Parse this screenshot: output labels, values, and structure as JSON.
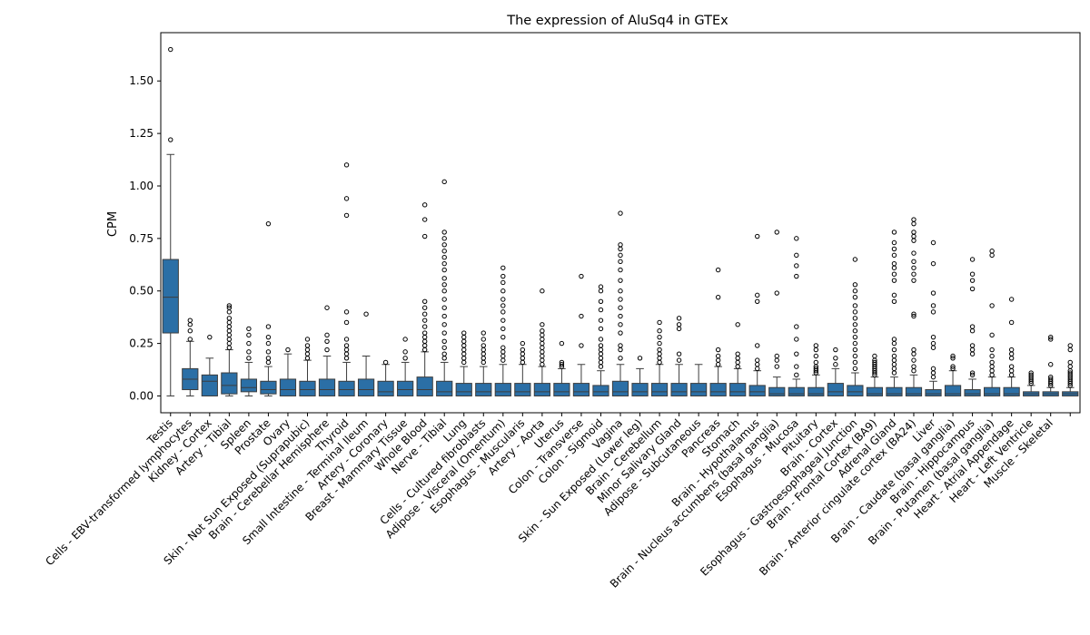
{
  "chart_data": {
    "type": "box",
    "title": "The expression of AluSq4 in GTEx",
    "xlabel": "",
    "ylabel": "CPM",
    "ylim": [
      -0.08,
      1.73
    ],
    "yticks": [
      0.0,
      0.25,
      0.5,
      0.75,
      1.0,
      1.25,
      1.5
    ],
    "ytick_labels": [
      "0.00",
      "0.25",
      "0.50",
      "0.75",
      "1.00",
      "1.25",
      "1.50"
    ],
    "box_color": "#2b6fa6",
    "grid": false,
    "categories": [
      {
        "label": "Testis",
        "q1": 0.3,
        "median": 0.47,
        "q3": 0.65,
        "whisker_low": 0.0,
        "whisker_high": 1.15,
        "outliers": [
          1.22,
          1.65
        ]
      },
      {
        "label": "Cells - EBV-transformed lymphocytes",
        "q1": 0.03,
        "median": 0.08,
        "q3": 0.13,
        "whisker_low": 0.0,
        "whisker_high": 0.26,
        "outliers": [
          0.27,
          0.31,
          0.34,
          0.36
        ]
      },
      {
        "label": "Kidney - Cortex",
        "q1": 0.0,
        "median": 0.07,
        "q3": 0.1,
        "whisker_low": 0.0,
        "whisker_high": 0.18,
        "outliers": [
          0.28
        ]
      },
      {
        "label": "Artery - Tibial",
        "q1": 0.01,
        "median": 0.05,
        "q3": 0.11,
        "whisker_low": 0.0,
        "whisker_high": 0.22,
        "outliers": [
          0.23,
          0.25,
          0.27,
          0.29,
          0.31,
          0.33,
          0.35,
          0.37,
          0.4,
          0.42,
          0.43
        ]
      },
      {
        "label": "Spleen",
        "q1": 0.02,
        "median": 0.04,
        "q3": 0.08,
        "whisker_low": 0.0,
        "whisker_high": 0.16,
        "outliers": [
          0.18,
          0.21,
          0.25,
          0.29,
          0.32
        ]
      },
      {
        "label": "Prostate",
        "q1": 0.01,
        "median": 0.03,
        "q3": 0.07,
        "whisker_low": 0.0,
        "whisker_high": 0.14,
        "outliers": [
          0.16,
          0.18,
          0.21,
          0.25,
          0.28,
          0.33,
          0.82
        ]
      },
      {
        "label": "Ovary",
        "q1": 0.0,
        "median": 0.03,
        "q3": 0.08,
        "whisker_low": 0.0,
        "whisker_high": 0.2,
        "outliers": [
          0.22
        ]
      },
      {
        "label": "Skin - Not Sun Exposed (Suprapubic)",
        "q1": 0.0,
        "median": 0.03,
        "q3": 0.07,
        "whisker_low": 0.0,
        "whisker_high": 0.17,
        "outliers": [
          0.18,
          0.2,
          0.22,
          0.24,
          0.27
        ]
      },
      {
        "label": "Brain - Cerebellar Hemisphere",
        "q1": 0.0,
        "median": 0.03,
        "q3": 0.08,
        "whisker_low": 0.0,
        "whisker_high": 0.19,
        "outliers": [
          0.22,
          0.26,
          0.29,
          0.42
        ]
      },
      {
        "label": "Thyroid",
        "q1": 0.0,
        "median": 0.03,
        "q3": 0.07,
        "whisker_low": 0.0,
        "whisker_high": 0.16,
        "outliers": [
          0.18,
          0.2,
          0.22,
          0.24,
          0.27,
          0.35,
          0.4,
          0.86,
          0.94,
          1.1
        ]
      },
      {
        "label": "Small Intestine - Terminal Ileum",
        "q1": 0.0,
        "median": 0.03,
        "q3": 0.08,
        "whisker_low": 0.0,
        "whisker_high": 0.19,
        "outliers": [
          0.39
        ]
      },
      {
        "label": "Artery - Coronary",
        "q1": 0.0,
        "median": 0.02,
        "q3": 0.07,
        "whisker_low": 0.0,
        "whisker_high": 0.15,
        "outliers": [
          0.16
        ]
      },
      {
        "label": "Breast - Mammary Tissue",
        "q1": 0.0,
        "median": 0.03,
        "q3": 0.07,
        "whisker_low": 0.0,
        "whisker_high": 0.16,
        "outliers": [
          0.18,
          0.21,
          0.27
        ]
      },
      {
        "label": "Whole Blood",
        "q1": 0.0,
        "median": 0.03,
        "q3": 0.09,
        "whisker_low": 0.0,
        "whisker_high": 0.21,
        "outliers": [
          0.22,
          0.24,
          0.26,
          0.28,
          0.3,
          0.33,
          0.36,
          0.39,
          0.42,
          0.45,
          0.76,
          0.84,
          0.91
        ]
      },
      {
        "label": "Nerve - Tibial",
        "q1": 0.0,
        "median": 0.02,
        "q3": 0.07,
        "whisker_low": 0.0,
        "whisker_high": 0.16,
        "outliers": [
          0.18,
          0.2,
          0.23,
          0.26,
          0.3,
          0.34,
          0.38,
          0.42,
          0.46,
          0.5,
          0.53,
          0.56,
          0.6,
          0.63,
          0.66,
          0.69,
          0.72,
          0.75,
          0.78,
          1.02
        ]
      },
      {
        "label": "Lung",
        "q1": 0.0,
        "median": 0.02,
        "q3": 0.06,
        "whisker_low": 0.0,
        "whisker_high": 0.14,
        "outliers": [
          0.16,
          0.18,
          0.2,
          0.22,
          0.24,
          0.26,
          0.28,
          0.3
        ]
      },
      {
        "label": "Cells - Cultured fibroblasts",
        "q1": 0.0,
        "median": 0.02,
        "q3": 0.06,
        "whisker_low": 0.0,
        "whisker_high": 0.14,
        "outliers": [
          0.16,
          0.18,
          0.2,
          0.22,
          0.24,
          0.27,
          0.3
        ]
      },
      {
        "label": "Adipose - Visceral (Omentum)",
        "q1": 0.0,
        "median": 0.02,
        "q3": 0.06,
        "whisker_low": 0.0,
        "whisker_high": 0.15,
        "outliers": [
          0.17,
          0.19,
          0.21,
          0.23,
          0.28,
          0.32,
          0.36,
          0.4,
          0.43,
          0.46,
          0.5,
          0.54,
          0.57,
          0.61
        ]
      },
      {
        "label": "Esophagus - Muscularis",
        "q1": 0.0,
        "median": 0.02,
        "q3": 0.06,
        "whisker_low": 0.0,
        "whisker_high": 0.15,
        "outliers": [
          0.16,
          0.18,
          0.2,
          0.22,
          0.25
        ]
      },
      {
        "label": "Artery - Aorta",
        "q1": 0.0,
        "median": 0.02,
        "q3": 0.06,
        "whisker_low": 0.0,
        "whisker_high": 0.14,
        "outliers": [
          0.15,
          0.17,
          0.19,
          0.21,
          0.23,
          0.25,
          0.27,
          0.29,
          0.31,
          0.34,
          0.5
        ]
      },
      {
        "label": "Uterus",
        "q1": 0.0,
        "median": 0.02,
        "q3": 0.06,
        "whisker_low": 0.0,
        "whisker_high": 0.13,
        "outliers": [
          0.14,
          0.15,
          0.16,
          0.25
        ]
      },
      {
        "label": "Colon - Transverse",
        "q1": 0.0,
        "median": 0.02,
        "q3": 0.06,
        "whisker_low": 0.0,
        "whisker_high": 0.15,
        "outliers": [
          0.24,
          0.38,
          0.57
        ]
      },
      {
        "label": "Colon - Sigmoid",
        "q1": 0.0,
        "median": 0.02,
        "q3": 0.05,
        "whisker_low": 0.0,
        "whisker_high": 0.12,
        "outliers": [
          0.14,
          0.16,
          0.18,
          0.2,
          0.22,
          0.24,
          0.27,
          0.32,
          0.36,
          0.41,
          0.45,
          0.5,
          0.52
        ]
      },
      {
        "label": "Vagina",
        "q1": 0.0,
        "median": 0.02,
        "q3": 0.07,
        "whisker_low": 0.0,
        "whisker_high": 0.15,
        "outliers": [
          0.18,
          0.22,
          0.24,
          0.3,
          0.34,
          0.38,
          0.42,
          0.46,
          0.5,
          0.55,
          0.6,
          0.64,
          0.67,
          0.7,
          0.72,
          0.87
        ]
      },
      {
        "label": "Skin - Sun Exposed (Lower leg)",
        "q1": 0.0,
        "median": 0.02,
        "q3": 0.06,
        "whisker_low": 0.0,
        "whisker_high": 0.13,
        "outliers": [
          0.18
        ]
      },
      {
        "label": "Brain - Cerebellum",
        "q1": 0.0,
        "median": 0.02,
        "q3": 0.06,
        "whisker_low": 0.0,
        "whisker_high": 0.15,
        "outliers": [
          0.16,
          0.18,
          0.2,
          0.22,
          0.25,
          0.28,
          0.31,
          0.35
        ]
      },
      {
        "label": "Minor Salivary Gland",
        "q1": 0.0,
        "median": 0.02,
        "q3": 0.06,
        "whisker_low": 0.0,
        "whisker_high": 0.15,
        "outliers": [
          0.17,
          0.2,
          0.32,
          0.34,
          0.37
        ]
      },
      {
        "label": "Adipose - Subcutaneous",
        "q1": 0.0,
        "median": 0.02,
        "q3": 0.06,
        "whisker_low": 0.0,
        "whisker_high": 0.15,
        "outliers": []
      },
      {
        "label": "Pancreas",
        "q1": 0.0,
        "median": 0.02,
        "q3": 0.06,
        "whisker_low": 0.0,
        "whisker_high": 0.14,
        "outliers": [
          0.15,
          0.17,
          0.19,
          0.22,
          0.47,
          0.6
        ]
      },
      {
        "label": "Stomach",
        "q1": 0.0,
        "median": 0.02,
        "q3": 0.06,
        "whisker_low": 0.0,
        "whisker_high": 0.13,
        "outliers": [
          0.14,
          0.16,
          0.18,
          0.2,
          0.34
        ]
      },
      {
        "label": "Brain - Hypothalamus",
        "q1": 0.0,
        "median": 0.02,
        "q3": 0.05,
        "whisker_low": 0.0,
        "whisker_high": 0.12,
        "outliers": [
          0.13,
          0.15,
          0.17,
          0.24,
          0.45,
          0.48,
          0.76
        ]
      },
      {
        "label": "Brain - Nucleus accumbens (basal ganglia)",
        "q1": 0.0,
        "median": 0.01,
        "q3": 0.04,
        "whisker_low": 0.0,
        "whisker_high": 0.09,
        "outliers": [
          0.14,
          0.17,
          0.19,
          0.49,
          0.78
        ]
      },
      {
        "label": "Esophagus - Mucosa",
        "q1": 0.0,
        "median": 0.01,
        "q3": 0.04,
        "whisker_low": 0.0,
        "whisker_high": 0.08,
        "outliers": [
          0.1,
          0.14,
          0.2,
          0.27,
          0.33,
          0.57,
          0.62,
          0.67,
          0.75
        ]
      },
      {
        "label": "Pituitary",
        "q1": 0.0,
        "median": 0.01,
        "q3": 0.04,
        "whisker_low": 0.0,
        "whisker_high": 0.1,
        "outliers": [
          0.11,
          0.12,
          0.13,
          0.14,
          0.16,
          0.19,
          0.22,
          0.24
        ]
      },
      {
        "label": "Brain - Cortex",
        "q1": 0.0,
        "median": 0.02,
        "q3": 0.06,
        "whisker_low": 0.0,
        "whisker_high": 0.13,
        "outliers": [
          0.15,
          0.18,
          0.22
        ]
      },
      {
        "label": "Esophagus - Gastroesophageal Junction",
        "q1": 0.0,
        "median": 0.02,
        "q3": 0.05,
        "whisker_low": 0.0,
        "whisker_high": 0.11,
        "outliers": [
          0.13,
          0.16,
          0.19,
          0.22,
          0.25,
          0.28,
          0.31,
          0.34,
          0.37,
          0.4,
          0.43,
          0.47,
          0.5,
          0.53,
          0.65
        ]
      },
      {
        "label": "Brain - Frontal Cortex (BA9)",
        "q1": 0.0,
        "median": 0.01,
        "q3": 0.04,
        "whisker_low": 0.0,
        "whisker_high": 0.09,
        "outliers": [
          0.1,
          0.11,
          0.12,
          0.13,
          0.14,
          0.15,
          0.16,
          0.17,
          0.19
        ]
      },
      {
        "label": "Adrenal Gland",
        "q1": 0.0,
        "median": 0.01,
        "q3": 0.04,
        "whisker_low": 0.0,
        "whisker_high": 0.09,
        "outliers": [
          0.11,
          0.13,
          0.15,
          0.17,
          0.19,
          0.22,
          0.25,
          0.27,
          0.45,
          0.48,
          0.55,
          0.58,
          0.61,
          0.63,
          0.67,
          0.7,
          0.73,
          0.78
        ]
      },
      {
        "label": "Brain - Anterior cingulate cortex (BA24)",
        "q1": 0.0,
        "median": 0.01,
        "q3": 0.04,
        "whisker_low": 0.0,
        "whisker_high": 0.1,
        "outliers": [
          0.12,
          0.14,
          0.17,
          0.2,
          0.22,
          0.38,
          0.39,
          0.55,
          0.58,
          0.61,
          0.64,
          0.68,
          0.74,
          0.76,
          0.78,
          0.82,
          0.84
        ]
      },
      {
        "label": "Liver",
        "q1": 0.0,
        "median": 0.01,
        "q3": 0.03,
        "whisker_low": 0.0,
        "whisker_high": 0.07,
        "outliers": [
          0.09,
          0.11,
          0.13,
          0.23,
          0.25,
          0.28,
          0.4,
          0.43,
          0.49,
          0.63,
          0.73
        ]
      },
      {
        "label": "Brain - Caudate (basal ganglia)",
        "q1": 0.0,
        "median": 0.01,
        "q3": 0.05,
        "whisker_low": 0.0,
        "whisker_high": 0.12,
        "outliers": [
          0.13,
          0.14,
          0.18,
          0.19
        ]
      },
      {
        "label": "Brain - Hippocampus",
        "q1": 0.0,
        "median": 0.01,
        "q3": 0.03,
        "whisker_low": 0.0,
        "whisker_high": 0.08,
        "outliers": [
          0.1,
          0.11,
          0.2,
          0.22,
          0.24,
          0.31,
          0.33,
          0.51,
          0.55,
          0.58,
          0.65
        ]
      },
      {
        "label": "Brain - Putamen (basal ganglia)",
        "q1": 0.0,
        "median": 0.01,
        "q3": 0.04,
        "whisker_low": 0.0,
        "whisker_high": 0.09,
        "outliers": [
          0.1,
          0.12,
          0.14,
          0.16,
          0.19,
          0.22,
          0.29,
          0.43,
          0.67,
          0.69
        ]
      },
      {
        "label": "Heart - Atrial Appendage",
        "q1": 0.0,
        "median": 0.01,
        "q3": 0.04,
        "whisker_low": 0.0,
        "whisker_high": 0.09,
        "outliers": [
          0.1,
          0.12,
          0.14,
          0.18,
          0.2,
          0.22,
          0.35,
          0.46
        ]
      },
      {
        "label": "Heart - Left Ventricle",
        "q1": 0.0,
        "median": 0.01,
        "q3": 0.02,
        "whisker_low": 0.0,
        "whisker_high": 0.05,
        "outliers": [
          0.06,
          0.07,
          0.08,
          0.09,
          0.1,
          0.11
        ]
      },
      {
        "label": "Muscle - Skeletal",
        "q1": 0.0,
        "median": 0.01,
        "q3": 0.02,
        "whisker_low": 0.0,
        "whisker_high": 0.04,
        "outliers": [
          0.05,
          0.06,
          0.07,
          0.08,
          0.09,
          0.15,
          0.27,
          0.28
        ]
      },
      {
        "label": "",
        "q1": 0.0,
        "median": 0.01,
        "q3": 0.02,
        "whisker_low": 0.0,
        "whisker_high": 0.04,
        "outliers": [
          0.05,
          0.06,
          0.07,
          0.08,
          0.09,
          0.1,
          0.11,
          0.12,
          0.14,
          0.16,
          0.22,
          0.24
        ]
      }
    ]
  }
}
